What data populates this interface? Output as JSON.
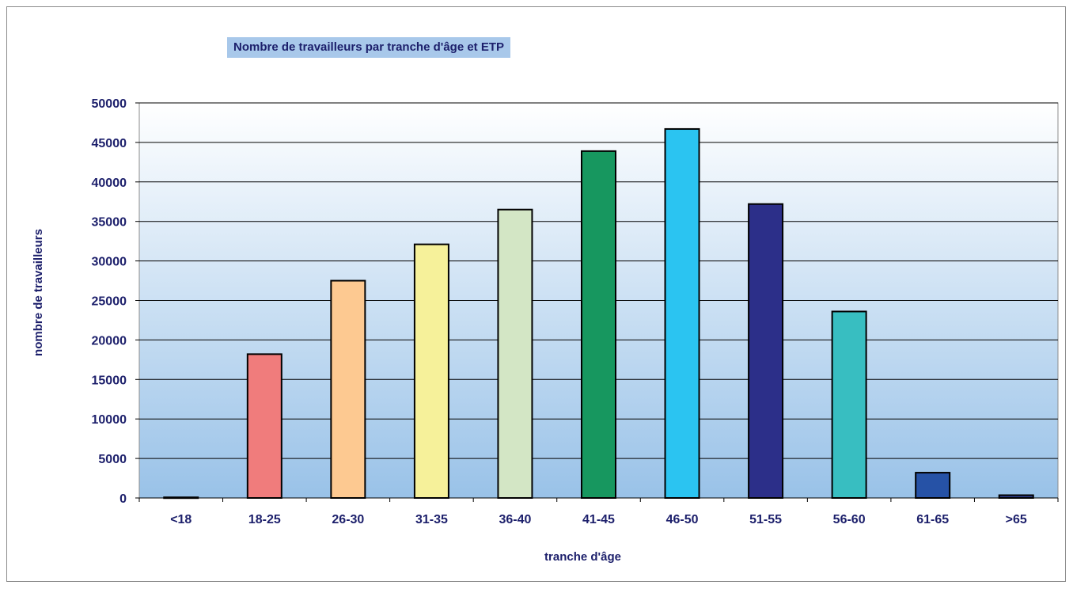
{
  "chart_data": {
    "type": "bar",
    "title": "Nombre de travailleurs par tranche d'âge et ETP",
    "xlabel": "tranche d'âge",
    "ylabel": "nombre de travailleurs",
    "categories": [
      "<18",
      "18-25",
      "26-30",
      "31-35",
      "36-40",
      "41-45",
      "46-50",
      "51-55",
      "56-60",
      "61-65",
      ">65"
    ],
    "values": [
      80,
      18200,
      27500,
      32100,
      36500,
      43900,
      46700,
      37200,
      23600,
      3200,
      350
    ],
    "bar_colors": [
      "#2a3a8c",
      "#f07c7c",
      "#fdc991",
      "#f6f19a",
      "#d3e6c5",
      "#17975f",
      "#2bc4f1",
      "#2c2f89",
      "#38bec1",
      "#2652a6",
      "#2d3e8f"
    ],
    "ylim": [
      0,
      50000
    ],
    "yticks": [
      "0",
      "5000",
      "10000",
      "15000",
      "20000",
      "25000",
      "30000",
      "35000",
      "40000",
      "45000",
      "50000"
    ],
    "grid": true,
    "legend": "none"
  },
  "colors": {
    "text": "#1c1f6b",
    "title_background": "#a8c8ea",
    "plot_gradient_top": "#ffffff",
    "plot_gradient_bottom": "#99c2e8"
  }
}
